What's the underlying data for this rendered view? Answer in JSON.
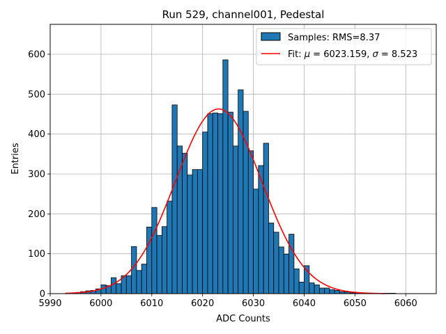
{
  "chart_data": {
    "type": "bar",
    "title": "Run 529, channel001, Pedestal",
    "xlabel": "ADC Counts",
    "ylabel": "Entries",
    "xlim": [
      5990,
      6066
    ],
    "ylim": [
      0,
      675
    ],
    "xticks": [
      5990,
      6000,
      6010,
      6020,
      6030,
      6040,
      6050,
      6060
    ],
    "yticks": [
      0,
      100,
      200,
      300,
      400,
      500,
      600
    ],
    "grid": true,
    "legend_position": "top-right",
    "bar_color": "#1f77b4",
    "fit_color": "#ff0000",
    "bin_width": 1,
    "bin_start": 5993,
    "histogram": {
      "name": "Samples: RMS=8.37",
      "values": [
        1,
        1,
        3,
        5,
        7,
        8,
        12,
        22,
        20,
        40,
        25,
        45,
        45,
        118,
        58,
        74,
        167,
        216,
        146,
        168,
        232,
        473,
        370,
        352,
        297,
        311,
        311,
        405,
        451,
        453,
        451,
        586,
        455,
        370,
        511,
        457,
        358,
        262,
        321,
        377,
        177,
        154,
        117,
        99,
        149,
        62,
        29,
        70,
        27,
        22,
        14,
        14,
        10,
        8,
        5,
        4,
        2,
        2,
        1,
        1,
        1,
        1,
        1,
        1,
        1
      ]
    },
    "fit": {
      "name_prefix": "Fit: ",
      "mu_symbol": "μ",
      "mu_value": " = 6023.159, ",
      "sigma_symbol": "σ",
      "sigma_value": " = 8.523",
      "mu": 6023.159,
      "sigma": 8.523,
      "amplitude": 463,
      "x_range": [
        5993,
        6056
      ]
    }
  }
}
